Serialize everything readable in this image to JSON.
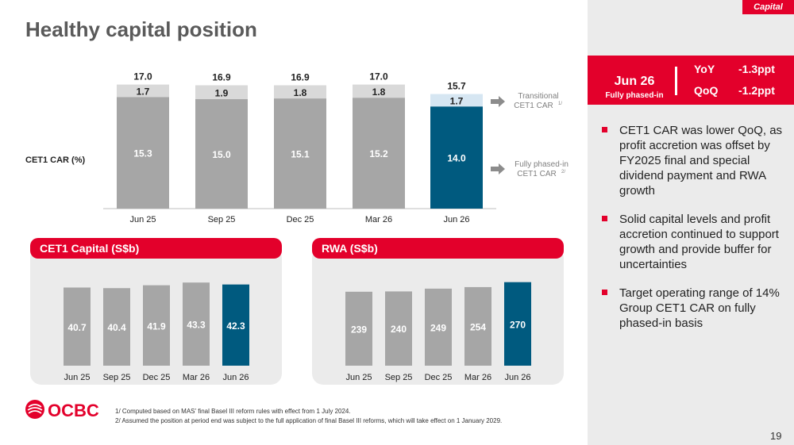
{
  "header": {
    "title": "Healthy capital position",
    "tag": "Capital"
  },
  "kpi": {
    "period": "Jun 26",
    "period_sub": "Fully phased-in",
    "yoy_label": "YoY",
    "yoy_value": "-1.3ppt",
    "qoq_label": "QoQ",
    "qoq_value": "-1.2ppt"
  },
  "bullets": [
    "CET1 CAR was lower QoQ, as profit accretion was offset by FY2025 final and special dividend payment and RWA growth",
    "Solid capital levels and profit accretion continued to support growth and provide buffer for uncertainties",
    "Target operating range of 14% Group CET1 CAR on fully phased-in basis"
  ],
  "main_chart": {
    "ylabel": "CET1 CAR (%)",
    "legend_transitional": "Transitional CET1 CAR",
    "legend_transitional_sup": "1/",
    "legend_fully": "Fully phased-in CET1 CAR",
    "legend_fully_sup": "2/"
  },
  "cet1_panel": {
    "title": "CET1 Capital (S$b)"
  },
  "rwa_panel": {
    "title": "RWA (S$b)"
  },
  "chart_data": [
    {
      "type": "bar",
      "stacked": true,
      "categories": [
        "Jun 25",
        "Sep 25",
        "Dec 25",
        "Mar 26",
        "Jun 26"
      ],
      "series": [
        {
          "name": "Fully phased-in CET1 CAR",
          "values": [
            15.3,
            15.0,
            15.1,
            15.2,
            14.0
          ]
        },
        {
          "name": "Transitional CET1 CAR",
          "values": [
            1.7,
            1.9,
            1.8,
            1.8,
            1.7
          ]
        }
      ],
      "totals": [
        17.0,
        16.9,
        16.9,
        17.0,
        15.7
      ],
      "total_labels": [
        "17.0",
        "16.9",
        "16.9",
        "17.0",
        "15.7"
      ],
      "bottom_labels": [
        "15.3",
        "15.0",
        "15.1",
        "15.2",
        "14.0"
      ],
      "top_labels": [
        "1.7",
        "1.9",
        "1.8",
        "1.8",
        "1.7"
      ],
      "ylabel": "CET1 CAR (%)",
      "ylim": [
        0,
        17.5
      ],
      "colors": {
        "bottom": "#a6a6a6",
        "top": "#d9d9d9",
        "highlight_bottom": "#005a7f",
        "highlight_top": "#d6e6f2"
      }
    },
    {
      "type": "bar",
      "title": "CET1 Capital (S$b)",
      "categories": [
        "Jun 25",
        "Sep 25",
        "Dec 25",
        "Mar 26",
        "Jun 26"
      ],
      "values": [
        40.7,
        40.4,
        41.9,
        43.3,
        42.3
      ],
      "labels": [
        "40.7",
        "40.4",
        "41.9",
        "43.3",
        "42.3"
      ],
      "ylim": [
        0,
        45
      ],
      "colors": {
        "bar": "#a6a6a6",
        "highlight": "#005a7f"
      }
    },
    {
      "type": "bar",
      "title": "RWA (S$b)",
      "categories": [
        "Jun 25",
        "Sep 25",
        "Dec 25",
        "Mar 26",
        "Jun 26"
      ],
      "values": [
        239,
        240,
        249,
        254,
        270
      ],
      "labels": [
        "239",
        "240",
        "249",
        "254",
        "270"
      ],
      "ylim": [
        0,
        280
      ],
      "colors": {
        "bar": "#a6a6a6",
        "highlight": "#005a7f"
      }
    }
  ],
  "footer": {
    "logo": "OCBC",
    "footnote1": "1/  Computed based on MAS’ final Basel III reform rules with effect from 1 July 2024.",
    "footnote2": "2/  Assumed the position at period end was subject to the full application of final Basel III reforms, which will take effect on 1 January 2029.",
    "page": "19"
  }
}
